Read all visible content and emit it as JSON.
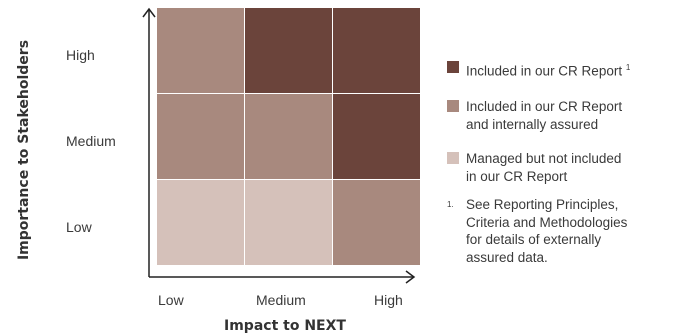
{
  "axes": {
    "y_label": "Importance to Stakeholders",
    "x_label": "Impact to NEXT",
    "rows": [
      "High",
      "Medium",
      "Low"
    ],
    "cols": [
      "Low",
      "Medium",
      "High"
    ]
  },
  "colors": {
    "dark": "#6b443b",
    "mid": "#a8897e",
    "light": "#d5c1ba"
  },
  "matrix": [
    [
      "mid",
      "dark",
      "dark"
    ],
    [
      "mid",
      "mid",
      "dark"
    ],
    [
      "light",
      "light",
      "mid"
    ]
  ],
  "legend": {
    "dark_text": "Included in our CR Report",
    "dark_sup": "1",
    "mid_text_line1": "Included in our CR Report",
    "mid_text_line2": "and internally assured",
    "light_text_line1": "Managed but not included",
    "light_text_line2": "in our CR Report"
  },
  "footnote": {
    "mark": "1.",
    "line1": "See Reporting Principles,",
    "line2": "Criteria and Methodologies",
    "line3": "for details of externally",
    "line4": "assured data."
  }
}
